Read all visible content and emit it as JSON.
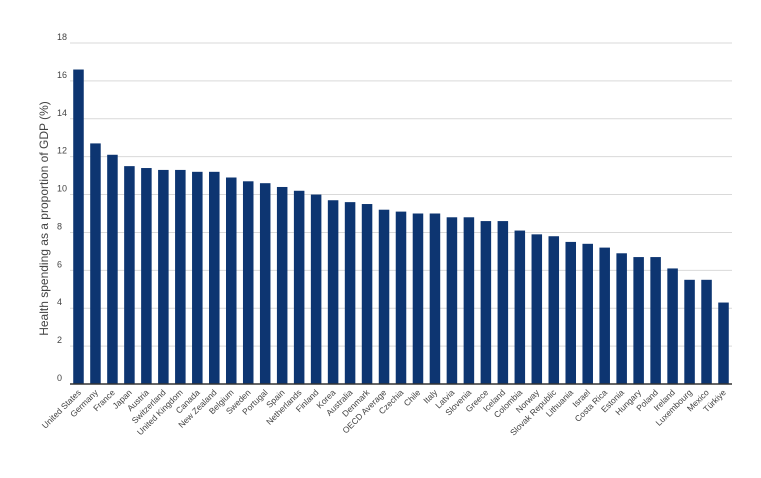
{
  "chart_data": {
    "type": "bar",
    "title": "",
    "xlabel": "",
    "ylabel": "Health spending as a proportion of GDP (%)",
    "ylim": [
      0,
      18
    ],
    "yticks": [
      0,
      2,
      4,
      6,
      8,
      10,
      12,
      14,
      16,
      18
    ],
    "grid": true,
    "bar_color": "#0d3571",
    "grid_color": "#d9d9d9",
    "categories": [
      "United States",
      "Germany",
      "France",
      "Japan",
      "Austria",
      "Switzerland",
      "United Kingdom",
      "Canada",
      "New Zealand",
      "Belgium",
      "Sweden",
      "Portugal",
      "Spain",
      "Netherlands",
      "Finland",
      "Korea",
      "Australia",
      "Denmark",
      "OECD Average",
      "Czechia",
      "Chile",
      "Italy",
      "Latvia",
      "Slovenia",
      "Greece",
      "Iceland",
      "Colombia",
      "Norway",
      "Slovak Republic",
      "Lithuania",
      "Israel",
      "Costa Rica",
      "Estonia",
      "Hungary",
      "Poland",
      "Ireland",
      "Luxembourg",
      "Mexico",
      "Türkiye"
    ],
    "values": [
      16.6,
      12.7,
      12.1,
      11.5,
      11.4,
      11.3,
      11.3,
      11.2,
      11.2,
      10.9,
      10.7,
      10.6,
      10.4,
      10.2,
      10.0,
      9.7,
      9.6,
      9.5,
      9.2,
      9.1,
      9.0,
      9.0,
      8.8,
      8.8,
      8.6,
      8.6,
      8.1,
      7.9,
      7.8,
      7.5,
      7.4,
      7.2,
      6.9,
      6.7,
      6.7,
      6.1,
      5.5,
      5.5,
      4.3
    ]
  }
}
